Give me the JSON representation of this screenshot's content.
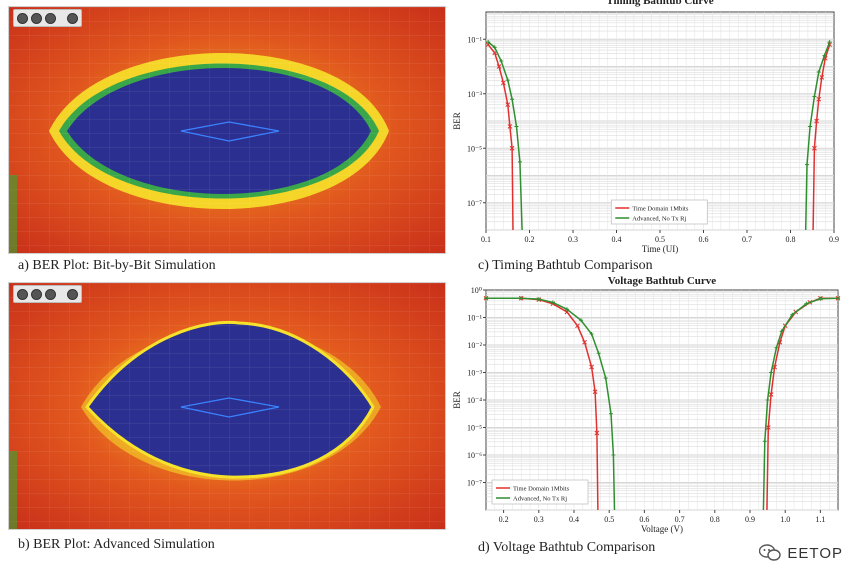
{
  "captions": {
    "a": "a) BER Plot: Bit-by-Bit Simulation",
    "b": "b) BER Plot: Advanced Simulation",
    "c": "c) Timing Bathtub Comparison",
    "d": "d) Voltage Bathtub Comparison"
  },
  "logo": {
    "text": "EETOP"
  },
  "colors": {
    "eye_inner": "#2b2f8f",
    "eye_outer": "#d4391c",
    "eye_ring_yellow": "#f4e21a",
    "series_red": "#e0312f",
    "series_green": "#2f8f2f"
  },
  "chart_data": [
    {
      "id": "timing",
      "type": "line",
      "title": "Timing Bathtub Curve",
      "xlabel": "Time (UI)",
      "ylabel": "BER",
      "xlim": [
        0.1,
        0.9
      ],
      "ylim_exp": [
        -8,
        0
      ],
      "yscale": "log",
      "xticks": [
        "0.1",
        "0.2",
        "0.3",
        "0.4",
        "0.5",
        "0.6",
        "0.7",
        "0.8",
        "0.9"
      ],
      "yticks": [
        "10⁻¹",
        "10⁻³",
        "10⁻⁵",
        "10⁻⁷"
      ],
      "legend": {
        "placement": "bottom-center"
      },
      "series": [
        {
          "name": "Time Domain 1Mbits",
          "color": "#e0312f",
          "left": [
            [
              0.105,
              -1.2
            ],
            [
              0.12,
              -1.5
            ],
            [
              0.13,
              -2.0
            ],
            [
              0.14,
              -2.6
            ],
            [
              0.15,
              -3.4
            ],
            [
              0.155,
              -4.2
            ],
            [
              0.16,
              -5.0
            ],
            [
              0.162,
              -8
            ]
          ],
          "right": [
            [
              0.852,
              -8
            ],
            [
              0.855,
              -5.0
            ],
            [
              0.86,
              -4.0
            ],
            [
              0.865,
              -3.2
            ],
            [
              0.872,
              -2.4
            ],
            [
              0.88,
              -1.7
            ],
            [
              0.89,
              -1.2
            ]
          ]
        },
        {
          "name": "Advanced, No Tx Rj",
          "color": "#2f8f2f",
          "left": [
            [
              0.105,
              -1.1
            ],
            [
              0.12,
              -1.3
            ],
            [
              0.135,
              -1.8
            ],
            [
              0.15,
              -2.5
            ],
            [
              0.16,
              -3.2
            ],
            [
              0.17,
              -4.2
            ],
            [
              0.178,
              -5.5
            ],
            [
              0.183,
              -8
            ]
          ],
          "right": [
            [
              0.835,
              -8
            ],
            [
              0.838,
              -5.6
            ],
            [
              0.845,
              -4.2
            ],
            [
              0.855,
              -3.1
            ],
            [
              0.865,
              -2.2
            ],
            [
              0.878,
              -1.6
            ],
            [
              0.89,
              -1.1
            ]
          ]
        }
      ]
    },
    {
      "id": "voltage",
      "type": "line",
      "title": "Voltage Bathtub Curve",
      "xlabel": "Voltage (V)",
      "ylabel": "BER",
      "xlim": [
        0.15,
        1.15
      ],
      "ylim_exp": [
        -8,
        0
      ],
      "yscale": "log",
      "xticks": [
        "0.2",
        "0.3",
        "0.4",
        "0.5",
        "0.6",
        "0.7",
        "0.8",
        "0.9",
        "1.0",
        "1.1"
      ],
      "yticks": [
        "10⁰",
        "10⁻¹",
        "10⁻²",
        "10⁻³",
        "10⁻⁴",
        "10⁻⁵",
        "10⁻⁶",
        "10⁻⁷"
      ],
      "legend": {
        "placement": "bottom-left"
      },
      "series": [
        {
          "name": "Time Domain 1Mbits",
          "color": "#e0312f",
          "left": [
            [
              0.15,
              -0.3
            ],
            [
              0.25,
              -0.3
            ],
            [
              0.3,
              -0.35
            ],
            [
              0.34,
              -0.5
            ],
            [
              0.38,
              -0.8
            ],
            [
              0.41,
              -1.3
            ],
            [
              0.43,
              -1.9
            ],
            [
              0.45,
              -2.8
            ],
            [
              0.46,
              -3.7
            ],
            [
              0.465,
              -5.2
            ],
            [
              0.468,
              -8
            ]
          ],
          "right": [
            [
              0.948,
              -8
            ],
            [
              0.952,
              -5.0
            ],
            [
              0.96,
              -3.8
            ],
            [
              0.97,
              -2.8
            ],
            [
              0.985,
              -1.9
            ],
            [
              1.0,
              -1.3
            ],
            [
              1.03,
              -0.8
            ],
            [
              1.07,
              -0.45
            ],
            [
              1.1,
              -0.3
            ],
            [
              1.15,
              -0.3
            ]
          ]
        },
        {
          "name": "Advanced, No Tx Rj",
          "color": "#2f8f2f",
          "left": [
            [
              0.15,
              -0.3
            ],
            [
              0.25,
              -0.3
            ],
            [
              0.3,
              -0.33
            ],
            [
              0.34,
              -0.45
            ],
            [
              0.38,
              -0.7
            ],
            [
              0.42,
              -1.1
            ],
            [
              0.45,
              -1.6
            ],
            [
              0.47,
              -2.3
            ],
            [
              0.49,
              -3.2
            ],
            [
              0.505,
              -4.5
            ],
            [
              0.512,
              -6
            ],
            [
              0.515,
              -8
            ]
          ],
          "right": [
            [
              0.938,
              -8
            ],
            [
              0.942,
              -5.5
            ],
            [
              0.95,
              -4.0
            ],
            [
              0.96,
              -3.0
            ],
            [
              0.975,
              -2.1
            ],
            [
              0.99,
              -1.5
            ],
            [
              1.02,
              -0.9
            ],
            [
              1.06,
              -0.5
            ],
            [
              1.1,
              -0.32
            ],
            [
              1.15,
              -0.3
            ]
          ]
        }
      ]
    }
  ]
}
